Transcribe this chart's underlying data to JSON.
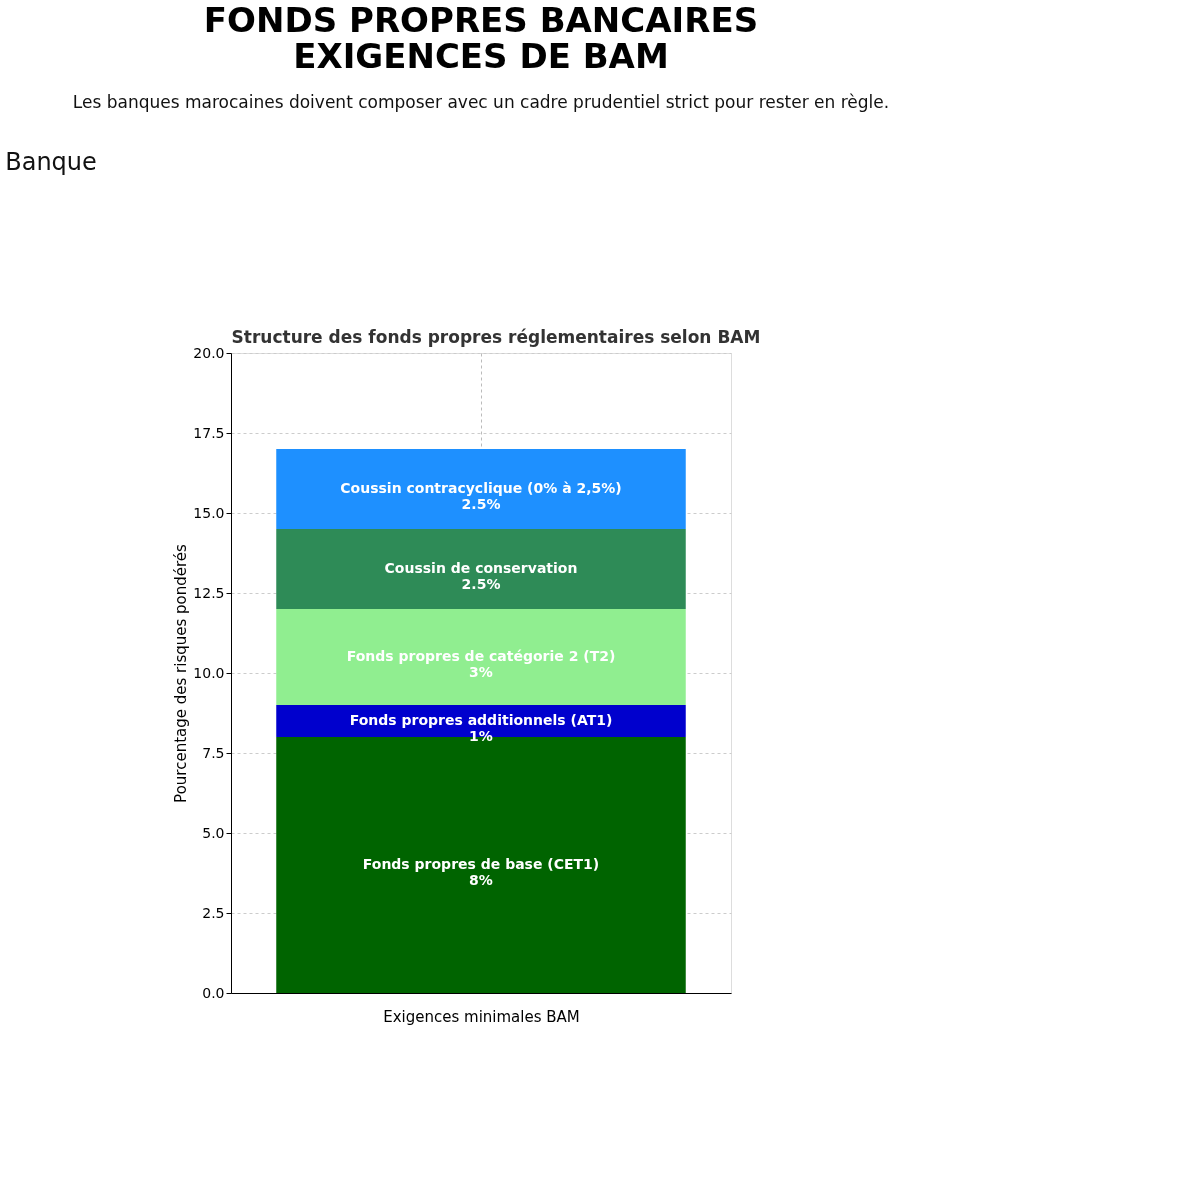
{
  "chart_data": {
    "type": "bar",
    "stacked": true,
    "title": "FONDS PROPRES BANCAIRES\nEXIGENCES DE BAM",
    "subtitle": "Les banques marocaines doivent composer avec un cadre prudentiel strict pour rester en règle.",
    "annotations": [
      "Banque",
      "Structure des fonds propres réglementaires selon BAM"
    ],
    "xlabel": "Exigences minimales BAM",
    "ylabel": "Pourcentage des risques pondérés",
    "categories": [
      null
    ],
    "series": [
      {
        "name": "Fonds propres de base (CET1)",
        "color": "#006400",
        "values": [
          8
        ],
        "value_labels": [
          "8%"
        ]
      },
      {
        "name": "Fonds propres additionnels (AT1)",
        "color": "#0000cd",
        "values": [
          1
        ],
        "value_labels": [
          "1%"
        ]
      },
      {
        "name": "Fonds propres de catégorie 2 (T2)",
        "color": "#90ee90",
        "values": [
          3
        ],
        "value_labels": [
          "3%"
        ]
      },
      {
        "name": "Coussin de conservation",
        "color": "#2e8b57",
        "values": [
          2.5
        ],
        "value_labels": [
          "2.5%"
        ]
      },
      {
        "name": "Coussin contracyclique (0% à 2,5%)",
        "color": "#1e90ff",
        "values": [
          2.5
        ],
        "value_labels": [
          "2.5%"
        ]
      }
    ],
    "ylim": [
      0,
      20
    ],
    "yticks": [
      {
        "value": 0,
        "label": "0.0"
      },
      2.5,
      {
        "value": 5,
        "label": "5.0"
      },
      7.5,
      {
        "value": 10,
        "label": "10.0"
      },
      12.5,
      {
        "value": 15,
        "label": "15.0"
      },
      17.5,
      {
        "value": 20,
        "label": "20.0"
      }
    ],
    "grid": true,
    "legend": false
  }
}
